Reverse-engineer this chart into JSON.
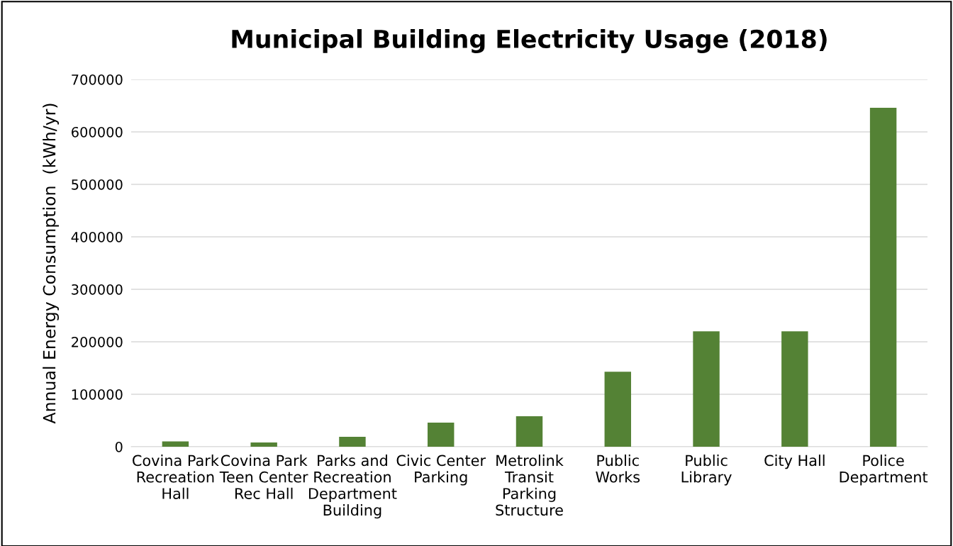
{
  "chart_data": {
    "type": "bar",
    "title": "Municipal Building Electricity Usage (2018)",
    "ylabel": "Annual Energy Consumption  (kWh/yr)",
    "categories": [
      "Covina Park\nRecreation\nHall",
      "Covina Park\nTeen Center\nRec Hall",
      "Parks and\nRecreation\nDepartment\nBuilding",
      "Civic Center\nParking",
      "Metrolink\nTransit\nParking\nStructure",
      "Public\nWorks",
      "Public\nLibrary",
      "City Hall",
      "Police\nDepartment"
    ],
    "values": [
      10000,
      8000,
      19000,
      46000,
      58000,
      143000,
      220000,
      220000,
      646000
    ],
    "color": "#548235",
    "ylim": [
      0,
      700000
    ],
    "yticks": [
      0,
      100000,
      200000,
      300000,
      400000,
      500000,
      600000,
      700000
    ],
    "grid": "y",
    "legend": false
  }
}
